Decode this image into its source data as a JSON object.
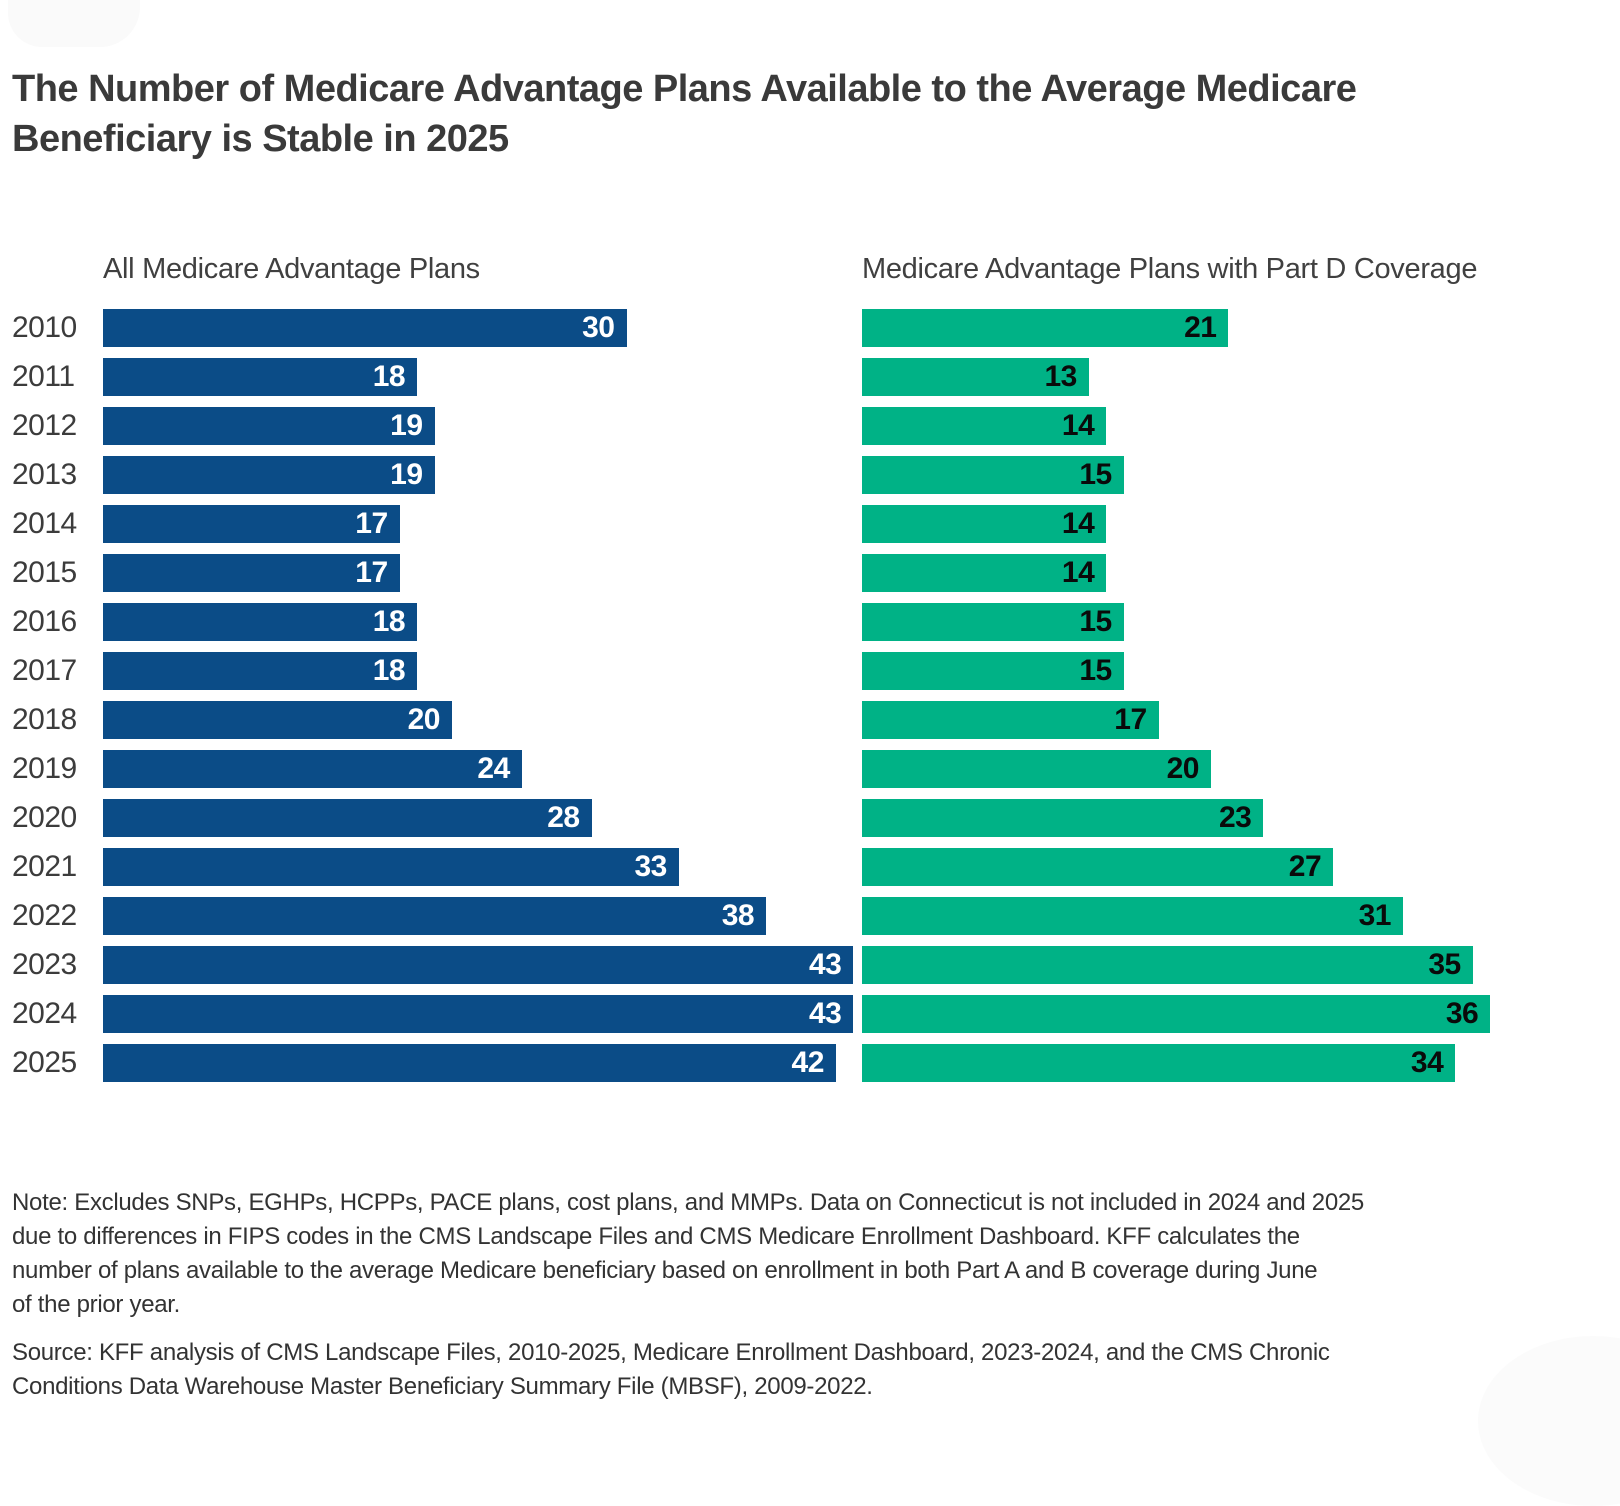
{
  "header": {
    "title_lines": [
      "The Number of Medicare Advantage Plans Available to the Average Medicare",
      "Beneficiary is Stable in 2025"
    ]
  },
  "chart_data": {
    "type": "bar",
    "orientation": "horizontal",
    "title": "The Number of Medicare Advantage Plans Available to the Average Medicare Beneficiary is Stable in 2025",
    "categories": [
      "2010",
      "2011",
      "2012",
      "2013",
      "2014",
      "2015",
      "2016",
      "2017",
      "2018",
      "2019",
      "2020",
      "2021",
      "2022",
      "2023",
      "2024",
      "2025"
    ],
    "series": [
      {
        "name": "All Medicare Advantage Plans",
        "color": "#0B4C87",
        "label_color": "#ffffff",
        "values": [
          30,
          18,
          19,
          19,
          17,
          17,
          18,
          18,
          20,
          24,
          28,
          33,
          38,
          43,
          43,
          42
        ]
      },
      {
        "name": "Medicare Advantage Plans with Part D Coverage",
        "color": "#00B286",
        "label_color": "#0a0a0a",
        "values": [
          21,
          13,
          14,
          15,
          14,
          14,
          15,
          15,
          17,
          20,
          23,
          27,
          31,
          35,
          36,
          34
        ]
      }
    ],
    "xlim": [
      0,
      43.5
    ],
    "value_labels": "inside-end",
    "grid": false,
    "axes_shown": false,
    "legend_position": "column-headers"
  },
  "footer": {
    "note_lines": [
      "Note: Excludes SNPs, EGHPs, HCPPs, PACE plans, cost plans, and MMPs. Data on Connecticut is not included in 2024 and 2025",
      "due to differences in FIPS codes in the CMS Landscape Files and CMS Medicare Enrollment Dashboard. KFF calculates the",
      "number of plans available to the average Medicare beneficiary based on enrollment in both Part A and B coverage during June",
      "of the prior year.",
      "Source: KFF analysis of CMS Landscape Files, 2010-2025, Medicare Enrollment Dashboard, 2023-2024, and the CMS Chronic",
      "Conditions Data Warehouse Master Beneficiary Summary File (MBSF), 2009-2022."
    ]
  }
}
